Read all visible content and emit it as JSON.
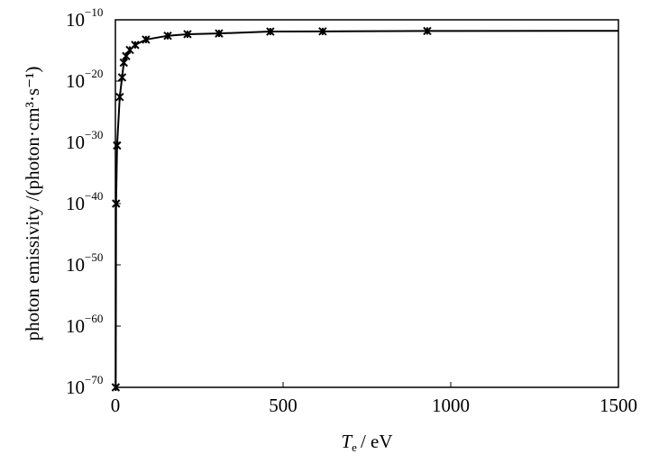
{
  "chart_data": {
    "type": "line",
    "xlabel": {
      "symbol": "T",
      "subscript": "e",
      "unit": "/ eV"
    },
    "ylabel": "photon emissivity /(photon·cm³·s⁻¹)",
    "xlim": [
      0,
      1500
    ],
    "xticks": [
      0,
      500,
      1000,
      1500
    ],
    "ylim": [
      1e-70,
      1e-10
    ],
    "log_y": true,
    "yticks": [
      {
        "value": 1e-70,
        "label": "10",
        "exponent": "−70"
      },
      {
        "value": 1e-60,
        "label": "10",
        "exponent": "−60"
      },
      {
        "value": 1e-50,
        "label": "10",
        "exponent": "−50"
      },
      {
        "value": 1e-40,
        "label": "10",
        "exponent": "−40"
      },
      {
        "value": 1e-30,
        "label": "10",
        "exponent": "−30"
      },
      {
        "value": 1e-20,
        "label": "10",
        "exponent": "−20"
      },
      {
        "value": 1e-10,
        "label": "10",
        "exponent": "−10"
      }
    ],
    "series": [
      {
        "color": "#000000",
        "style": "line",
        "x": [
          1,
          2,
          5,
          13,
          20,
          25,
          32,
          43,
          59,
          91,
          156,
          215,
          309,
          462,
          618,
          930,
          1500
        ],
        "values": [
          1e-70,
          1e-40,
          3e-31,
          2.5e-23,
          4e-20,
          1e-17,
          1.2e-16,
          1.2e-15,
          8e-15,
          6e-14,
          2.5e-13,
          4.5e-13,
          6e-13,
          1.2e-12,
          1.3e-12,
          1.5e-12,
          1.6e-12
        ]
      },
      {
        "color": "#000000",
        "style": "markers",
        "x": [
          1,
          2,
          5,
          13,
          20,
          25,
          32,
          43,
          59,
          91,
          156,
          215,
          309,
          462,
          618,
          930
        ],
        "values": [
          1e-70,
          1e-40,
          3e-31,
          2.5e-23,
          4e-20,
          1e-17,
          1.2e-16,
          1.2e-15,
          8e-15,
          6e-14,
          2.5e-13,
          4.5e-13,
          6e-13,
          1.2e-12,
          1.3e-12,
          1.5e-12
        ]
      }
    ]
  }
}
